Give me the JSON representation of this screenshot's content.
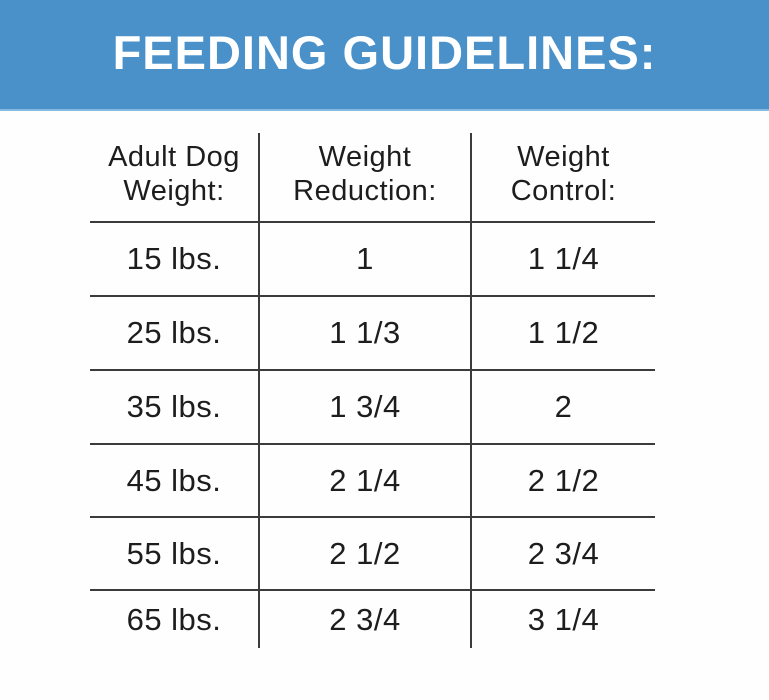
{
  "header": {
    "title": "FEEDING GUIDELINES:"
  },
  "table": {
    "columns": [
      {
        "line1": "Adult Dog",
        "line2": "Weight:"
      },
      {
        "line1": "Weight",
        "line2": "Reduction:"
      },
      {
        "line1": "Weight",
        "line2": "Control:"
      }
    ],
    "rows": [
      {
        "weight": "15 lbs.",
        "reduction": "1",
        "control": "1 1/4"
      },
      {
        "weight": "25 lbs.",
        "reduction": "1 1/3",
        "control": "1 1/2"
      },
      {
        "weight": "35 lbs.",
        "reduction": "1 3/4",
        "control": "2"
      },
      {
        "weight": "45 lbs.",
        "reduction": "2 1/4",
        "control": "2 1/2"
      },
      {
        "weight": "55 lbs.",
        "reduction": "2 1/2",
        "control": "2 3/4"
      },
      {
        "weight": "65 lbs.",
        "reduction": "2 3/4",
        "control": "3 1/4"
      }
    ]
  },
  "colors": {
    "banner_blue": "#4a91ca",
    "banner_edge": "#85b9e0",
    "line_gray": "#3b3b3b",
    "text_dark": "#1d1d1d",
    "title_white": "#ffffff"
  }
}
